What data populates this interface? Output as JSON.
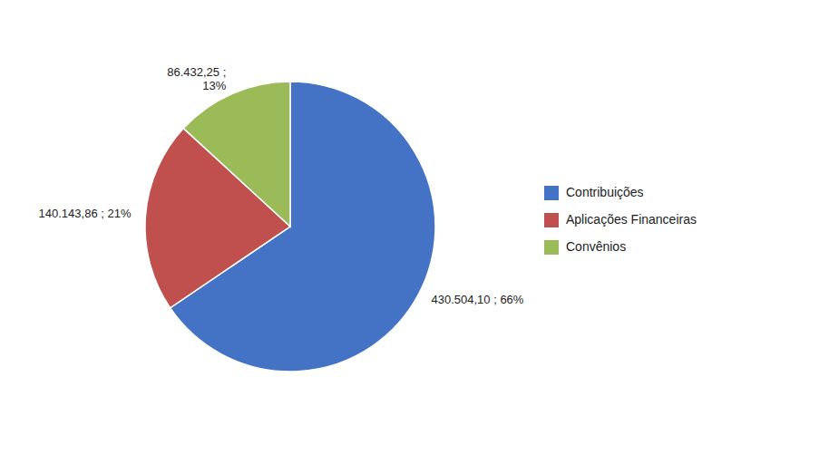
{
  "chart_data": {
    "type": "pie",
    "categories": [
      "Contribuições",
      "Aplicações Financeiras",
      "Convênios"
    ],
    "values": [
      430504.1,
      140143.86,
      86432.25
    ],
    "value_labels": [
      "430.504,10 ; 66%",
      "140.143,86 ; 21%",
      "86.432,25 ;\n13%"
    ],
    "colors": [
      "#4472C4",
      "#C0504D",
      "#9BBB59"
    ],
    "data_labels": true,
    "legend": "right"
  }
}
